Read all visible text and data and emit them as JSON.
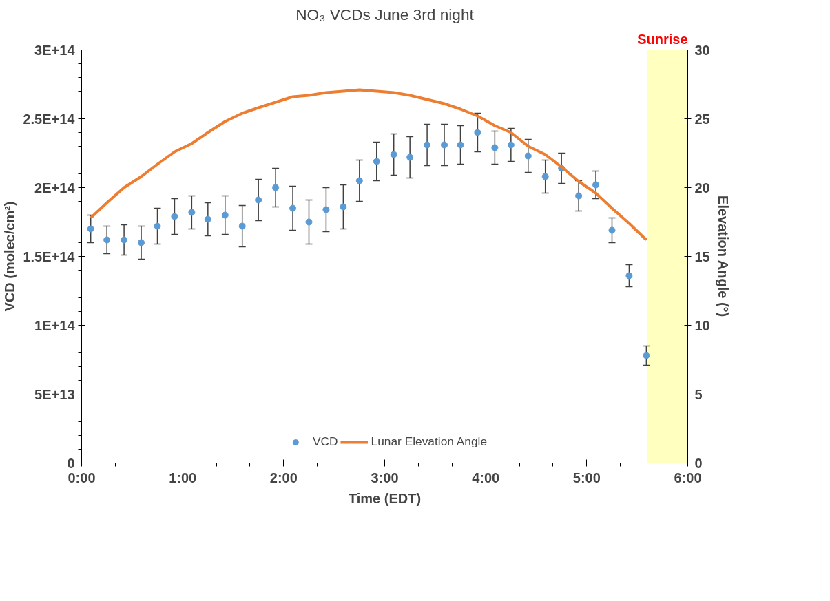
{
  "chart_data": {
    "type": "scatter",
    "title": "NO₃ VCDs June 3rd night",
    "xlabel": "Time (EDT)",
    "ylabel": "VCD (molec/cm²)",
    "y2label": "Elevation Angle (°)",
    "xlim": [
      0,
      6
    ],
    "xticks": [
      {
        "value": 0,
        "label": "0:00"
      },
      {
        "value": 0.3333,
        "label": null
      },
      {
        "value": 0.6667,
        "label": null
      },
      {
        "value": 1,
        "label": "1:00"
      },
      {
        "value": 1.3333,
        "label": null
      },
      {
        "value": 1.6667,
        "label": null
      },
      {
        "value": 2,
        "label": "2:00"
      },
      {
        "value": 2.3333,
        "label": null
      },
      {
        "value": 2.6667,
        "label": null
      },
      {
        "value": 3,
        "label": "3:00"
      },
      {
        "value": 3.3333,
        "label": null
      },
      {
        "value": 3.6667,
        "label": null
      },
      {
        "value": 4,
        "label": "4:00"
      },
      {
        "value": 4.3333,
        "label": null
      },
      {
        "value": 4.6667,
        "label": null
      },
      {
        "value": 5,
        "label": "5:00"
      },
      {
        "value": 5.3333,
        "label": null
      },
      {
        "value": 5.6667,
        "label": null
      },
      {
        "value": 6,
        "label": "6:00"
      }
    ],
    "ylim": [
      0,
      300000000000000.0
    ],
    "yticks": [
      0,
      {
        "value": 10000000000000.0,
        "label": null
      },
      {
        "value": 20000000000000.0,
        "label": null
      },
      {
        "value": 30000000000000.0,
        "label": null
      },
      {
        "value": 40000000000000.0,
        "label": null
      },
      {
        "value": 50000000000000.0,
        "label": "5E+13"
      },
      {
        "value": 60000000000000.0,
        "label": null
      },
      {
        "value": 70000000000000.0,
        "label": null
      },
      {
        "value": 80000000000000.0,
        "label": null
      },
      {
        "value": 90000000000000.0,
        "label": null
      },
      {
        "value": 100000000000000.0,
        "label": "1E+14"
      },
      {
        "value": 110000000000000.0,
        "label": null
      },
      {
        "value": 120000000000000.0,
        "label": null
      },
      {
        "value": 130000000000000.0,
        "label": null
      },
      {
        "value": 140000000000000.0,
        "label": null
      },
      {
        "value": 150000000000000.0,
        "label": "1.5E+14"
      },
      {
        "value": 160000000000000.0,
        "label": null
      },
      {
        "value": 170000000000000.0,
        "label": null
      },
      {
        "value": 180000000000000.0,
        "label": null
      },
      {
        "value": 190000000000000.0,
        "label": null
      },
      {
        "value": 200000000000000.0,
        "label": "2E+14"
      },
      {
        "value": 210000000000000.0,
        "label": null
      },
      {
        "value": 220000000000000.0,
        "label": null
      },
      {
        "value": 230000000000000.0,
        "label": null
      },
      {
        "value": 240000000000000.0,
        "label": null
      },
      {
        "value": 250000000000000.0,
        "label": "2.5E+14"
      },
      {
        "value": 260000000000000.0,
        "label": null
      },
      {
        "value": 270000000000000.0,
        "label": null
      },
      {
        "value": 280000000000000.0,
        "label": null
      },
      {
        "value": 290000000000000.0,
        "label": null
      },
      {
        "value": 300000000000000.0,
        "label": "3E+14"
      }
    ],
    "y2lim": [
      0,
      30
    ],
    "y2ticks": [
      0,
      5,
      10,
      15,
      20,
      25,
      30
    ],
    "x": [
      0.09,
      0.25,
      0.42,
      0.59,
      0.75,
      0.92,
      1.09,
      1.25,
      1.42,
      1.59,
      1.75,
      1.92,
      2.09,
      2.25,
      2.42,
      2.59,
      2.75,
      2.92,
      3.09,
      3.25,
      3.42,
      3.59,
      3.75,
      3.92,
      4.09,
      4.25,
      4.42,
      4.59,
      4.75,
      4.92,
      5.09,
      5.25,
      5.42,
      5.59
    ],
    "series": [
      {
        "name": "VCD",
        "color": "#5b9bd5",
        "marker": "circle",
        "values": [
          170000000000000.0,
          162000000000000.0,
          162000000000000.0,
          160000000000000.0,
          172000000000000.0,
          179000000000000.0,
          182000000000000.0,
          177000000000000.0,
          180000000000000.0,
          172000000000000.0,
          191000000000000.0,
          200000000000000.0,
          185000000000000.0,
          175000000000000.0,
          184000000000000.0,
          186000000000000.0,
          205000000000000.0,
          219000000000000.0,
          224000000000000.0,
          222000000000000.0,
          231000000000000.0,
          231000000000000.0,
          231000000000000.0,
          240000000000000.0,
          229000000000000.0,
          231000000000000.0,
          223000000000000.0,
          208000000000000.0,
          214000000000000.0,
          194000000000000.0,
          202000000000000.0,
          169000000000000.0,
          136000000000000.0,
          78000000000000.0
        ],
        "errors": [
          10000000000000.0,
          10000000000000.0,
          11000000000000.0,
          12000000000000.0,
          13000000000000.0,
          13000000000000.0,
          12000000000000.0,
          12000000000000.0,
          14000000000000.0,
          15000000000000.0,
          15000000000000.0,
          14000000000000.0,
          16000000000000.0,
          16000000000000.0,
          16000000000000.0,
          16000000000000.0,
          15000000000000.0,
          14000000000000.0,
          15000000000000.0,
          15000000000000.0,
          15000000000000.0,
          15000000000000.0,
          14000000000000.0,
          14000000000000.0,
          12000000000000.0,
          12000000000000.0,
          12000000000000.0,
          12000000000000.0,
          11000000000000.0,
          11000000000000.0,
          10000000000000.0,
          9000000000000.0,
          8000000000000.0,
          7000000000000.0
        ]
      },
      {
        "name": "Lunar Elevation Angle",
        "type": "line",
        "axis": "y2",
        "color": "#ed7d31",
        "marker": "none",
        "line_style": "solid",
        "values": [
          17.8,
          18.9,
          20.0,
          20.8,
          21.7,
          22.6,
          23.2,
          24.0,
          24.8,
          25.4,
          25.8,
          26.2,
          26.6,
          26.7,
          26.9,
          27.0,
          27.1,
          27.0,
          26.9,
          26.7,
          26.4,
          26.1,
          25.7,
          25.2,
          24.5,
          24.0,
          23.0,
          22.4,
          21.5,
          20.45,
          19.6,
          18.5,
          17.4,
          16.2
        ]
      }
    ],
    "bands": [
      {
        "axis": "x",
        "from": 5.6,
        "to": 6,
        "label": "Sunrise",
        "color": "#ffffbf"
      }
    ],
    "grid": false,
    "legend": "bottom"
  }
}
